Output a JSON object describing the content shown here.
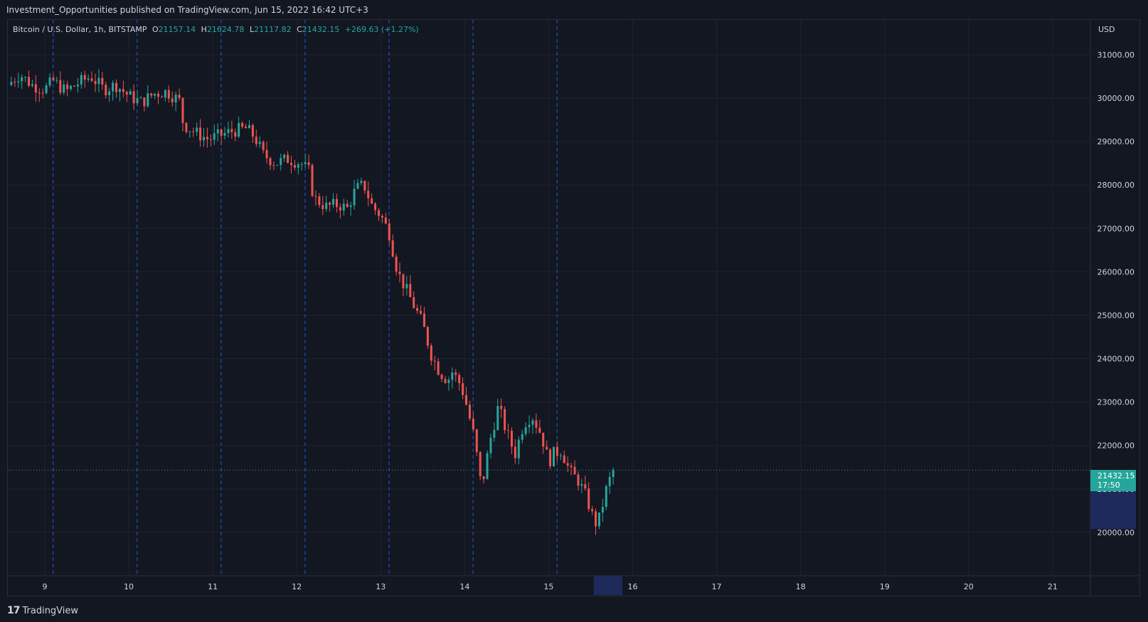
{
  "header": {
    "publisher_text": "Investment_Opportunities published on TradingView.com, Jun 15, 2022 16:42 UTC+3"
  },
  "legend": {
    "symbol": "Bitcoin / U.S. Dollar, 1h, BITSTAMP",
    "open_label": "O",
    "open_value": "21157.14",
    "high_label": "H",
    "high_value": "21624.78",
    "low_label": "L",
    "low_value": "21117.82",
    "close_label": "C",
    "close_value": "21432.15",
    "change": "+269.63 (+1.27%)"
  },
  "price_axis": {
    "currency": "USD",
    "last_price": "21432.15",
    "countdown": "17:50"
  },
  "footer": {
    "brand": "TradingView",
    "logo_text": "17"
  },
  "colors": {
    "up": "#26a69a",
    "down": "#ef5350",
    "background": "#131722",
    "grid": "#1f2330",
    "session_line": "#2962ff"
  },
  "chart_data": {
    "type": "candlestick",
    "symbol": "BTCUSD",
    "interval": "1h",
    "ylim": [
      19000,
      31800
    ],
    "y_ticks": [
      "31000.00",
      "30000.00",
      "29000.00",
      "28000.00",
      "27000.00",
      "26000.00",
      "25000.00",
      "24000.00",
      "23000.00",
      "22000.00",
      "21000.00",
      "20000.00"
    ],
    "x_ticks": [
      "9",
      "10",
      "11",
      "12",
      "13",
      "14",
      "15",
      "16",
      "17",
      "18",
      "19",
      "20",
      "21"
    ],
    "x_start_day": 8.56,
    "x_end_day": 21.45,
    "session_lines_day": [
      9.1,
      10.1,
      11.1,
      12.1,
      13.1,
      14.1,
      15.1
    ],
    "last_price": 21432.15,
    "close_path": [
      [
        8.56,
        30300
      ],
      [
        8.7,
        30550
      ],
      [
        8.85,
        30300
      ],
      [
        9.0,
        30200
      ],
      [
        9.1,
        30400
      ],
      [
        9.25,
        30150
      ],
      [
        9.4,
        30350
      ],
      [
        9.55,
        30500
      ],
      [
        9.7,
        30200
      ],
      [
        9.85,
        30300
      ],
      [
        10.0,
        30050
      ],
      [
        10.15,
        29900
      ],
      [
        10.3,
        30100
      ],
      [
        10.45,
        30150
      ],
      [
        10.6,
        29950
      ],
      [
        10.65,
        29400
      ],
      [
        10.8,
        29200
      ],
      [
        10.95,
        29050
      ],
      [
        11.1,
        29150
      ],
      [
        11.25,
        29250
      ],
      [
        11.4,
        29300
      ],
      [
        11.5,
        29100
      ],
      [
        11.6,
        28700
      ],
      [
        11.75,
        28500
      ],
      [
        11.9,
        28600
      ],
      [
        12.05,
        28500
      ],
      [
        12.15,
        28300
      ],
      [
        12.2,
        27700
      ],
      [
        12.35,
        27500
      ],
      [
        12.5,
        27550
      ],
      [
        12.6,
        27450
      ],
      [
        12.7,
        27900
      ],
      [
        12.8,
        28000
      ],
      [
        12.9,
        27500
      ],
      [
        13.0,
        27300
      ],
      [
        13.1,
        26900
      ],
      [
        13.2,
        26000
      ],
      [
        13.3,
        25600
      ],
      [
        13.4,
        25200
      ],
      [
        13.5,
        24800
      ],
      [
        13.6,
        24100
      ],
      [
        13.7,
        23700
      ],
      [
        13.8,
        23500
      ],
      [
        13.85,
        23700
      ],
      [
        13.95,
        23400
      ],
      [
        14.0,
        23100
      ],
      [
        14.1,
        22300
      ],
      [
        14.15,
        21700
      ],
      [
        14.2,
        21000
      ],
      [
        14.3,
        22100
      ],
      [
        14.4,
        22900
      ],
      [
        14.5,
        22300
      ],
      [
        14.6,
        21800
      ],
      [
        14.7,
        22500
      ],
      [
        14.8,
        22700
      ],
      [
        14.9,
        22300
      ],
      [
        14.95,
        22000
      ],
      [
        15.0,
        21600
      ],
      [
        15.05,
        21800
      ],
      [
        15.15,
        21900
      ],
      [
        15.25,
        21400
      ],
      [
        15.35,
        21200
      ],
      [
        15.45,
        20800
      ],
      [
        15.55,
        20200
      ],
      [
        15.6,
        20300
      ],
      [
        15.7,
        21100
      ],
      [
        15.78,
        21432.15
      ]
    ]
  }
}
